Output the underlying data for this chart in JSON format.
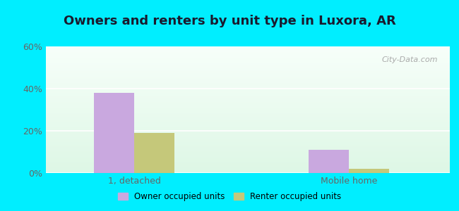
{
  "title": "Owners and renters by unit type in Luxora, AR",
  "categories": [
    "1, detached",
    "Mobile home"
  ],
  "owner_values": [
    38,
    11
  ],
  "renter_values": [
    19,
    2
  ],
  "owner_color": "#c9a8df",
  "renter_color": "#c5c87a",
  "ylim": [
    0,
    60
  ],
  "yticks": [
    0,
    20,
    40,
    60
  ],
  "ytick_labels": [
    "0%",
    "20%",
    "40%",
    "60%"
  ],
  "bar_width": 0.32,
  "group_positions": [
    1.0,
    2.7
  ],
  "outer_color": "#00eeff",
  "legend_owner": "Owner occupied units",
  "legend_renter": "Renter occupied units",
  "watermark": "City-Data.com",
  "title_fontsize": 13,
  "label_fontsize": 9,
  "tick_fontsize": 9,
  "title_color": "#1a1a2e"
}
